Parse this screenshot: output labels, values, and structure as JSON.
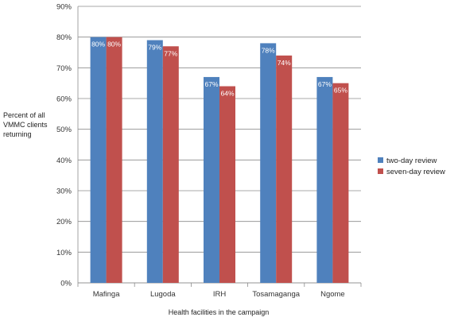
{
  "chart_data": {
    "type": "bar",
    "title": "",
    "xlabel": "Health facilities in the campaign",
    "ylabel": [
      "Percent of all",
      "VMMC clients",
      "returning"
    ],
    "ylim": [
      0,
      90
    ],
    "yticks": [
      0,
      10,
      20,
      30,
      40,
      50,
      60,
      70,
      80,
      90
    ],
    "ytick_suffix": "%",
    "grid": true,
    "legend_position": "right",
    "categories": [
      "Mafinga",
      "Lugoda",
      "IRH",
      "Tosamaganga",
      "Ngome"
    ],
    "series": [
      {
        "name": "two-day review",
        "color": "#4f81bd",
        "values": [
          80,
          79,
          67,
          78,
          67
        ],
        "labels": [
          "80%",
          "79%",
          "67%",
          "78%",
          "67%"
        ]
      },
      {
        "name": "seven-day review",
        "color": "#c0504d",
        "values": [
          80,
          77,
          64,
          74,
          65
        ],
        "labels": [
          "80%",
          "77%",
          "64%",
          "74%",
          "65%"
        ]
      }
    ]
  }
}
